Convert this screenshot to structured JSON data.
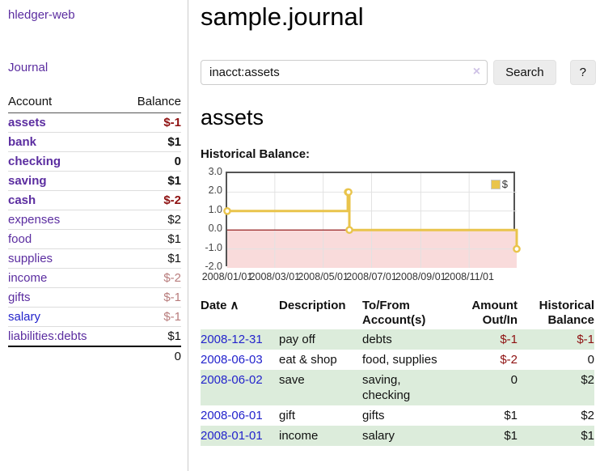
{
  "app": {
    "title": "hledger-web",
    "nav_journal": "Journal"
  },
  "colors": {
    "purple_link": "#5b2da0",
    "blue_link": "#2323cc",
    "negative_strong": "#8e1111",
    "negative_dim": "#b87c7c",
    "stripe_green": "#dcecdb",
    "chart_line_gold": "#e9c44c",
    "chart_negative_fill": "#f9dbdb",
    "chart_zero_line": "#8c0d0d"
  },
  "sidebar": {
    "col_account": "Account",
    "col_balance": "Balance",
    "accounts": [
      {
        "name": "assets",
        "indent": 1,
        "bold": true,
        "link": "purple",
        "balance": "$-1",
        "bclass": "neg"
      },
      {
        "name": "bank",
        "indent": 2,
        "bold": true,
        "link": "purple",
        "balance": "$1",
        "bclass": "pos"
      },
      {
        "name": "checking",
        "indent": 3,
        "bold": true,
        "link": "purple",
        "balance": "0",
        "bclass": "pos"
      },
      {
        "name": "saving",
        "indent": 3,
        "bold": true,
        "link": "purple",
        "balance": "$1",
        "bclass": "pos"
      },
      {
        "name": "cash",
        "indent": 2,
        "bold": true,
        "link": "purple",
        "balance": "$-2",
        "bclass": "neg"
      },
      {
        "name": "expenses",
        "indent": 1,
        "bold": false,
        "link": "purple",
        "balance": "$2",
        "bclass": "pos"
      },
      {
        "name": "food",
        "indent": 2,
        "bold": false,
        "link": "purple",
        "balance": "$1",
        "bclass": "pos"
      },
      {
        "name": "supplies",
        "indent": 2,
        "bold": false,
        "link": "purple",
        "balance": "$1",
        "bclass": "pos"
      },
      {
        "name": "income",
        "indent": 1,
        "bold": false,
        "link": "purple",
        "balance": "$-2",
        "bclass": "dimneg"
      },
      {
        "name": "gifts",
        "indent": 2,
        "bold": false,
        "link": "purple",
        "balance": "$-1",
        "bclass": "dimneg"
      },
      {
        "name": "salary",
        "indent": 2,
        "bold": false,
        "link": "blue",
        "balance": "$-1",
        "bclass": "dimneg"
      },
      {
        "name": "liabilities:debts",
        "indent": 1,
        "bold": false,
        "link": "purple",
        "balance": "$1",
        "bclass": "pos"
      }
    ],
    "total": "0"
  },
  "main": {
    "title": "sample.journal",
    "search": {
      "value": "inacct:assets",
      "clear": "×",
      "button": "Search",
      "help": "?"
    },
    "account_title": "assets",
    "chart_label": "Historical Balance:"
  },
  "chart_data": {
    "type": "line",
    "step": true,
    "title": "Historical Balance",
    "series": [
      {
        "name": "$",
        "points": [
          [
            "2008-01-01",
            1
          ],
          [
            "2008-06-01",
            2
          ],
          [
            "2008-06-02",
            2
          ],
          [
            "2008-06-03",
            0
          ],
          [
            "2008-12-31",
            -1
          ]
        ]
      }
    ],
    "xrange": [
      "2008-01-01",
      "2008-12-31"
    ],
    "ylim": [
      -2,
      3
    ],
    "yticks": [
      "3.0",
      "2.0",
      "1.0",
      "0.0",
      "-1.0",
      "-2.0"
    ],
    "xticks": [
      "2008/01/01",
      "2008/03/01",
      "2008/05/01",
      "2008/07/01",
      "2008/09/01",
      "2008/11/01"
    ],
    "grid": true,
    "legend_position": "top-right"
  },
  "register": {
    "headers": {
      "date": "Date",
      "sort_indicator": "∧",
      "description": "Description",
      "tofrom": [
        "To/From",
        "Account(s)"
      ],
      "amount": [
        "Amount",
        "Out/In"
      ],
      "balance": [
        "Historical",
        "Balance"
      ]
    },
    "rows": [
      {
        "date": "2008-12-31",
        "description": "pay off",
        "accounts": "debts",
        "amount": "$-1",
        "amount_neg": true,
        "balance": "$-1",
        "balance_neg": true,
        "stripe": true
      },
      {
        "date": "2008-06-03",
        "description": "eat & shop",
        "accounts": "food, supplies",
        "amount": "$-2",
        "amount_neg": true,
        "balance": "0",
        "balance_neg": false,
        "stripe": false
      },
      {
        "date": "2008-06-02",
        "description": "save",
        "accounts": "saving, checking",
        "amount": "0",
        "amount_neg": false,
        "balance": "$2",
        "balance_neg": false,
        "stripe": true
      },
      {
        "date": "2008-06-01",
        "description": "gift",
        "accounts": "gifts",
        "amount": "$1",
        "amount_neg": false,
        "balance": "$2",
        "balance_neg": false,
        "stripe": false
      },
      {
        "date": "2008-01-01",
        "description": "income",
        "accounts": "salary",
        "amount": "$1",
        "amount_neg": false,
        "balance": "$1",
        "balance_neg": false,
        "stripe": true
      }
    ]
  }
}
